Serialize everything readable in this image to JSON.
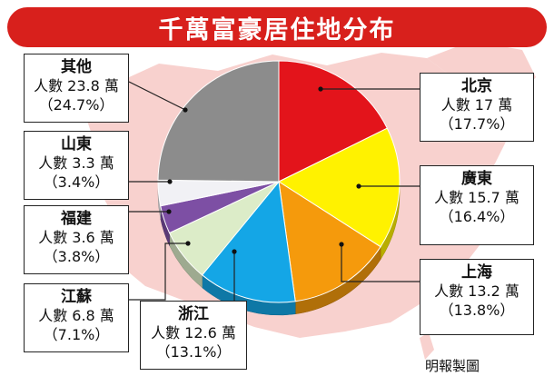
{
  "title": "千萬富豪居住地分布",
  "credit": "明報製圖",
  "chart_data": {
    "type": "pie",
    "title": "千萬富豪居住地分布",
    "value_prefix": "人數",
    "value_unit": "萬",
    "slices": [
      {
        "name": "北京",
        "value": 17,
        "value_label": "17",
        "percent_label": "（17.7%）",
        "percent": 17.7,
        "color": "#e3141b"
      },
      {
        "name": "廣東",
        "value": 15.7,
        "value_label": "15.7",
        "percent_label": "（16.4%）",
        "percent": 16.4,
        "color": "#fff200"
      },
      {
        "name": "上海",
        "value": 13.2,
        "value_label": "13.2",
        "percent_label": "（13.8%）",
        "percent": 13.8,
        "color": "#f59a0c"
      },
      {
        "name": "浙江",
        "value": 12.6,
        "value_label": "12.6",
        "percent_label": "（13.1%）",
        "percent": 13.1,
        "color": "#14a6e6"
      },
      {
        "name": "江蘇",
        "value": 6.8,
        "value_label": "6.8",
        "percent_label": "（7.1%）",
        "percent": 7.1,
        "color": "#dcecc8"
      },
      {
        "name": "福建",
        "value": 3.6,
        "value_label": "3.6",
        "percent_label": "（3.8%）",
        "percent": 3.8,
        "color": "#7d4fa4"
      },
      {
        "name": "山東",
        "value": 3.3,
        "value_label": "3.3",
        "percent_label": "（3.4%）",
        "percent": 3.4,
        "color": "#f1f1f5"
      },
      {
        "name": "其他",
        "value": 23.8,
        "value_label": "23.8",
        "percent_label": "（24.7%）",
        "percent": 24.7,
        "color": "#8c8c8c"
      }
    ],
    "start": "12 o'clock",
    "direction": "clockwise",
    "labels": "callout boxes with leader lines"
  }
}
